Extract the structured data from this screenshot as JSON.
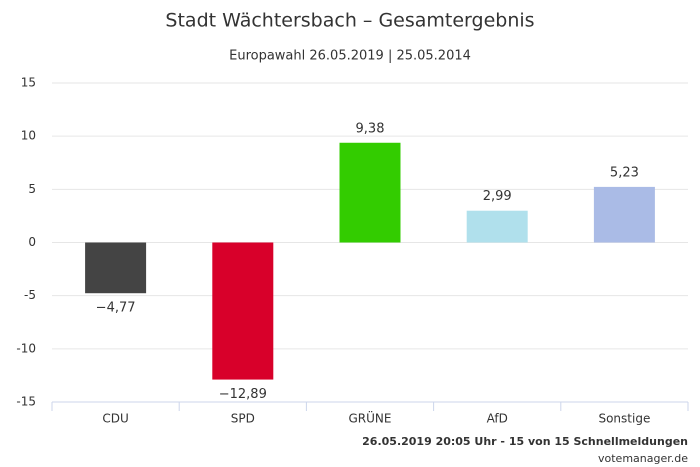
{
  "chart_data": {
    "type": "bar",
    "title": "Stadt Wächtersbach – Gesamtergebnis",
    "subtitle": "Europawahl 26.05.2019 | 25.05.2014",
    "categories": [
      "CDU",
      "SPD",
      "GRÜNE",
      "AfD",
      "Sonstige"
    ],
    "values": [
      -4.77,
      -12.89,
      9.38,
      2.99,
      5.23
    ],
    "value_labels": [
      "−4,77",
      "−12,89",
      "9,38",
      "2,99",
      "5,23"
    ],
    "colors": [
      "#444444",
      "#d8002a",
      "#33cc00",
      "#b0e0ec",
      "#aabbe6"
    ],
    "ylim": [
      -15,
      15
    ],
    "yticks": [
      -15,
      -10,
      -5,
      0,
      5,
      10,
      15
    ],
    "grid": true,
    "footer": "26.05.2019 20:05 Uhr - 15 von 15 Schnellmeldungen",
    "credit": "votemanager.de"
  }
}
